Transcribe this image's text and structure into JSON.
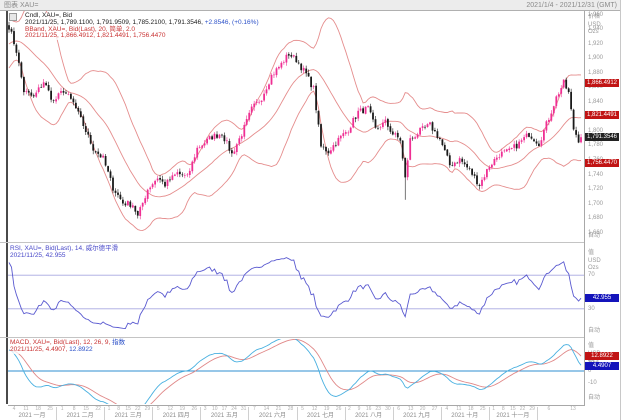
{
  "header": {
    "left": "图表 XAU=",
    "right": "2021/1/4 - 2021/12/31 (GMT)"
  },
  "price_panel": {
    "legend_lines": [
      [
        {
          "text": "Cndl, XAU=, Bid",
          "color": "#1a1a1a"
        }
      ],
      [
        {
          "text": "2021/11/25, 1,789.1100, 1,791.9509, 1,785.2100, 1,791.3546, ",
          "color": "#1a1a1a"
        },
        {
          "text": "+2.8546, (+0.16%)",
          "color": "#2b50c8"
        }
      ],
      [
        {
          "text": "BBand, XAU=, Bid(Last), 20, 简单, 2.0",
          "color": "#c83232"
        }
      ],
      [
        {
          "text": "2021/11/25, 1,866.4912, 1,821.4491, 1,756.4470",
          "color": "#c83232"
        }
      ]
    ],
    "axis": {
      "title": [
        "价格",
        "USD",
        "Ozs"
      ],
      "auto_label": "自动",
      "badges": [
        {
          "value": "1,866.4912",
          "num": 1866.4912,
          "bg": "#c11414",
          "fg": "#ffffff"
        },
        {
          "value": "1,821.4491",
          "num": 1821.4491,
          "bg": "#c11414",
          "fg": "#ffffff"
        },
        {
          "value": "1,791.3546",
          "num": 1791.3546,
          "bg": "#222222",
          "fg": "#ffffff"
        },
        {
          "value": "1,756.4470",
          "num": 1756.447,
          "bg": "#c11414",
          "fg": "#ffffff"
        }
      ]
    }
  },
  "rsi_panel": {
    "legend_lines": [
      [
        {
          "text": "RSI, XAU=, Bid(Last), 14, 威尔德平滑",
          "color": "#4646c8"
        }
      ],
      [
        {
          "text": "2021/11/25, 42.955",
          "color": "#4646c8"
        }
      ]
    ],
    "axis": {
      "title": [
        "值",
        "USD",
        "Ozs"
      ],
      "ticks": [
        70,
        30
      ],
      "auto_label": "自动",
      "badges": [
        {
          "value": "42.955",
          "num": 42.955,
          "bg": "#1414bb",
          "fg": "#ffffff"
        }
      ]
    }
  },
  "macd_panel": {
    "legend_lines": [
      [
        {
          "text": "MACD, XAU=, Bid(Last), 12, 26, 9, ",
          "color": "#c83232"
        },
        {
          "text": "指数",
          "color": "#2b50c8"
        }
      ],
      [
        {
          "text": "2021/11/25, 4.4907, ",
          "color": "#c83232"
        },
        {
          "text": "12.8922",
          "color": "#2b50c8"
        }
      ]
    ],
    "axis": {
      "title": [
        "值",
        "USD",
        "Ozs"
      ],
      "ticks": [
        10,
        0,
        -10
      ],
      "auto_label": "自动",
      "badges": [
        {
          "value": "12.8922",
          "num": 12.8922,
          "bg": "#c11414",
          "fg": "#ffffff"
        },
        {
          "value": "4.4907",
          "num": 4.4907,
          "bg": "#1414bb",
          "fg": "#ffffff"
        }
      ]
    }
  },
  "time_axis": {
    "months": [
      {
        "label": "2021 一月",
        "days": [
          "4",
          "11",
          "18",
          "25"
        ]
      },
      {
        "label": "2021 二月",
        "days": [
          "1",
          "8",
          "15",
          "22"
        ]
      },
      {
        "label": "2021 三月",
        "days": [
          "1",
          "8",
          "15",
          "22",
          "29"
        ]
      },
      {
        "label": "2021 四月",
        "days": [
          "5",
          "12",
          "19",
          "26"
        ]
      },
      {
        "label": "2021 五月",
        "days": [
          "3",
          "10",
          "17",
          "24",
          "31"
        ]
      },
      {
        "label": "2021 六月",
        "days": [
          "7",
          "14",
          "21",
          "28"
        ]
      },
      {
        "label": "2021 七月",
        "days": [
          "5",
          "12",
          "19",
          "26"
        ]
      },
      {
        "label": "2021 八月",
        "days": [
          "2",
          "9",
          "16",
          "23",
          "30"
        ]
      },
      {
        "label": "2021 九月",
        "days": [
          "6",
          "13",
          "20",
          "27"
        ]
      },
      {
        "label": "2021 十月",
        "days": [
          "4",
          "11",
          "18",
          "25"
        ]
      },
      {
        "label": "2021 十一月",
        "days": [
          "1",
          "8",
          "15",
          "22",
          "29"
        ]
      },
      {
        "label": "",
        "days": [
          "6",
          "13"
        ]
      }
    ]
  },
  "chart_data": {
    "type": "candlestick",
    "title": "Cndl, XAU=, Bid",
    "symbol": "XAU=",
    "period": "daily",
    "date_range": [
      "2021/1/4",
      "2021/12/31"
    ],
    "last_quote": {
      "date": "2021/11/25",
      "open": 1789.11,
      "high": 1791.9509,
      "low": 1785.21,
      "close": 1791.3546,
      "change": "+2.8546",
      "change_pct": "+0.16%"
    },
    "price_axis": {
      "min": 1650,
      "max": 1965,
      "ticks": [
        1960,
        1940,
        1920,
        1900,
        1880,
        1860,
        1840,
        1820,
        1800,
        1780,
        1760,
        1740,
        1720,
        1700,
        1680,
        1660
      ]
    },
    "n_candles": 232,
    "close_anchors": [
      [
        0,
        1944
      ],
      [
        3,
        1910
      ],
      [
        6,
        1855
      ],
      [
        10,
        1846
      ],
      [
        14,
        1868
      ],
      [
        18,
        1840
      ],
      [
        22,
        1856
      ],
      [
        26,
        1838
      ],
      [
        30,
        1808
      ],
      [
        34,
        1776
      ],
      [
        38,
        1762
      ],
      [
        42,
        1722
      ],
      [
        46,
        1701
      ],
      [
        50,
        1699
      ],
      [
        52,
        1682
      ],
      [
        56,
        1720
      ],
      [
        60,
        1736
      ],
      [
        63,
        1726
      ],
      [
        68,
        1742
      ],
      [
        72,
        1736
      ],
      [
        76,
        1776
      ],
      [
        82,
        1792
      ],
      [
        86,
        1797
      ],
      [
        90,
        1768
      ],
      [
        94,
        1796
      ],
      [
        98,
        1830
      ],
      [
        102,
        1846
      ],
      [
        106,
        1876
      ],
      [
        110,
        1892
      ],
      [
        113,
        1906
      ],
      [
        116,
        1898
      ],
      [
        120,
        1878
      ],
      [
        123,
        1858
      ],
      [
        126,
        1778
      ],
      [
        129,
        1772
      ],
      [
        133,
        1788
      ],
      [
        137,
        1802
      ],
      [
        141,
        1826
      ],
      [
        145,
        1831
      ],
      [
        148,
        1802
      ],
      [
        152,
        1812
      ],
      [
        155,
        1796
      ],
      [
        158,
        1788
      ],
      [
        160,
        1734
      ],
      [
        162,
        1788
      ],
      [
        166,
        1800
      ],
      [
        170,
        1808
      ],
      [
        174,
        1789
      ],
      [
        178,
        1753
      ],
      [
        182,
        1761
      ],
      [
        186,
        1746
      ],
      [
        190,
        1726
      ],
      [
        194,
        1752
      ],
      [
        198,
        1768
      ],
      [
        202,
        1772
      ],
      [
        206,
        1783
      ],
      [
        210,
        1796
      ],
      [
        214,
        1783
      ],
      [
        218,
        1818
      ],
      [
        221,
        1846
      ],
      [
        224,
        1866
      ],
      [
        226,
        1852
      ],
      [
        228,
        1803
      ],
      [
        230,
        1788
      ],
      [
        231,
        1791.35
      ]
    ],
    "indicators": {
      "bband": {
        "period": 20,
        "ma_type": "简单",
        "stdev": 2.0,
        "last_upper": 1866.4912,
        "last_middle": 1821.4491,
        "last_lower": 1756.447
      },
      "rsi": {
        "period": 14,
        "smoothing": "威尔德平滑",
        "last": 42.955,
        "ref_lines": [
          70,
          30
        ]
      },
      "macd": {
        "fast": 12,
        "slow": 26,
        "signal_period": 9,
        "ma_type": "指数",
        "last_macd": 4.4907,
        "last_signal": 12.8922
      }
    },
    "colors": {
      "up_candle": "#ef2f93",
      "down_candle": "#1a1a1a",
      "bband_line": "#e58d8d",
      "rsi_line": "#5a5ad0",
      "rsi_ref_line": "#a8a8e0",
      "macd_line": "#49b0e0",
      "macd_signal_line": "#e08888",
      "macd_zero_line": "#2f8fd0"
    }
  }
}
